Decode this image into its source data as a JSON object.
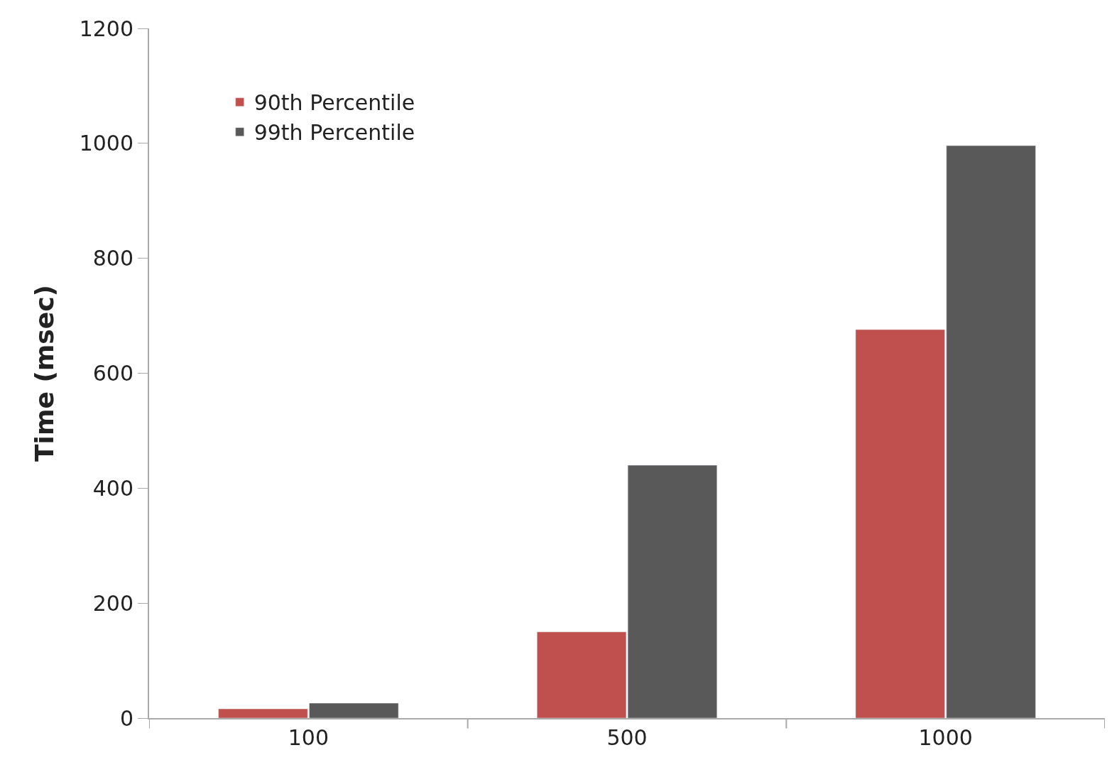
{
  "chart_data": {
    "type": "bar",
    "ylabel": "Time (msec)",
    "categories": [
      "100",
      "500",
      "1000"
    ],
    "series": [
      {
        "name": "90th Percentile",
        "color": "#c0504d",
        "values": [
          16,
          150,
          676
        ]
      },
      {
        "name": "99th Percentile",
        "color": "#595959",
        "values": [
          26,
          440,
          996
        ]
      }
    ],
    "ylim": [
      0,
      1200
    ],
    "yticks": [
      0,
      200,
      400,
      600,
      800,
      1000,
      1200
    ],
    "grid": false,
    "legend": "top left"
  }
}
